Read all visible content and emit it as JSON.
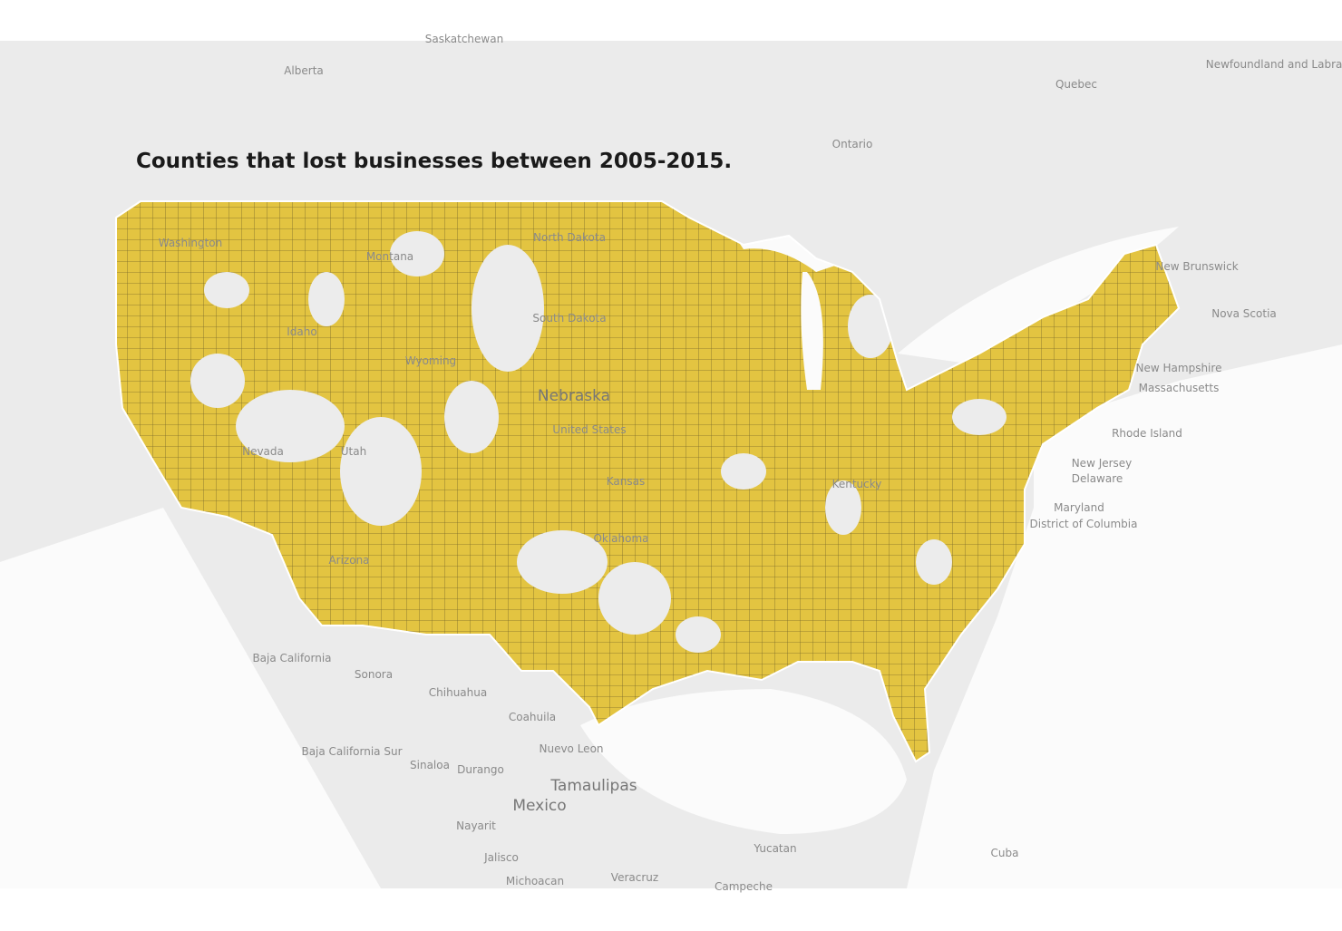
{
  "title": "Counties that lost businesses between 2005-2015.",
  "labels": [
    "Saskatchewan",
    "Alberta",
    "Quebec",
    "Newfoundland and Labrador",
    "Ontario",
    "New Brunswick",
    "Nova Scotia",
    "Washington",
    "Montana",
    "North Dakota",
    "South Dakota",
    "Idaho",
    "Wyoming",
    "Nebraska",
    "United States",
    "Nevada",
    "Utah",
    "Kansas",
    "Arizona",
    "Oklahoma",
    "Kentucky",
    "New Hampshire",
    "Massachusetts",
    "Rhode Island",
    "New Jersey",
    "Delaware",
    "Maryland",
    "District of Columbia",
    "Baja California",
    "Sonora",
    "Chihuahua",
    "Coahuila",
    "Baja California Sur",
    "Nuevo Leon",
    "Sinaloa",
    "Durango",
    "Tamaulipas",
    "Mexico",
    "Nayarit",
    "Jalisco",
    "Michoacan",
    "Veracruz",
    "Yucatan",
    "Campeche",
    "Cuba"
  ]
}
